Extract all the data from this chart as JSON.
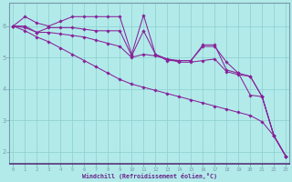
{
  "xlabel": "Windchill (Refroidissement éolien,°C)",
  "bg_color": "#b2eaea",
  "line_color": "#882299",
  "grid_color": "#8ccece",
  "spine_color": "#7799aa",
  "tick_color": "#662288",
  "x_values": [
    0,
    1,
    2,
    3,
    4,
    5,
    6,
    7,
    8,
    9,
    10,
    11,
    12,
    13,
    14,
    15,
    16,
    17,
    18,
    19,
    20,
    21,
    22,
    23
  ],
  "line1": [
    6.0,
    6.3,
    6.1,
    6.0,
    6.15,
    6.3,
    6.3,
    6.3,
    6.3,
    6.3,
    5.1,
    6.35,
    5.1,
    4.9,
    4.9,
    4.9,
    5.4,
    5.4,
    4.6,
    4.5,
    3.8,
    3.75,
    2.5,
    1.85
  ],
  "line2": [
    6.0,
    6.0,
    5.8,
    5.95,
    5.95,
    5.95,
    5.9,
    5.85,
    5.85,
    5.85,
    5.05,
    5.85,
    5.1,
    4.95,
    4.9,
    4.9,
    5.35,
    5.35,
    4.85,
    4.5,
    4.4,
    3.75,
    2.5,
    1.85
  ],
  "line3": [
    6.0,
    5.95,
    5.8,
    5.8,
    5.75,
    5.7,
    5.65,
    5.55,
    5.45,
    5.35,
    5.0,
    5.1,
    5.05,
    4.95,
    4.85,
    4.85,
    4.9,
    4.95,
    4.55,
    4.45,
    4.4,
    3.75,
    2.5,
    1.85
  ],
  "line4": [
    6.0,
    5.85,
    5.65,
    5.5,
    5.3,
    5.1,
    4.9,
    4.7,
    4.5,
    4.3,
    4.15,
    4.05,
    3.95,
    3.85,
    3.75,
    3.65,
    3.55,
    3.45,
    3.35,
    3.25,
    3.15,
    2.95,
    2.5,
    1.85
  ],
  "ylim": [
    1.6,
    6.75
  ],
  "yticks": [
    2,
    3,
    4,
    5,
    6
  ],
  "xticks": [
    0,
    1,
    2,
    3,
    4,
    5,
    6,
    7,
    8,
    9,
    10,
    11,
    12,
    13,
    14,
    15,
    16,
    17,
    18,
    19,
    20,
    21,
    22,
    23
  ]
}
